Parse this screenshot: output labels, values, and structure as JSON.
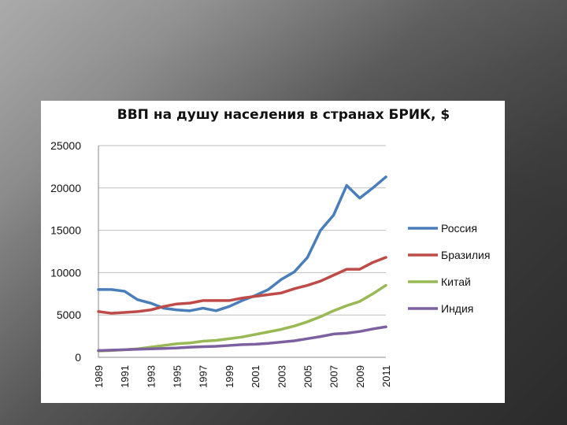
{
  "chart_data": {
    "type": "line",
    "title": "ВВП на душу населения в странах БРИК, $",
    "xlabel": "",
    "ylabel": "",
    "x": [
      1989,
      1990,
      1991,
      1992,
      1993,
      1994,
      1995,
      1996,
      1997,
      1998,
      1999,
      2000,
      2001,
      2002,
      2003,
      2004,
      2005,
      2006,
      2007,
      2008,
      2009,
      2010,
      2011
    ],
    "x_tick_labels": [
      "1989",
      "1991",
      "1993",
      "1995",
      "1997",
      "1999",
      "2001",
      "2003",
      "2005",
      "2007",
      "2009",
      "2011"
    ],
    "y_tick_labels": [
      "0",
      "5000",
      "10000",
      "15000",
      "20000",
      "25000"
    ],
    "ylim": [
      0,
      25000
    ],
    "grid": "horizontal",
    "legend_position": "right",
    "series": [
      {
        "name": "Россия",
        "color": "#4a7ebb",
        "values": [
          8000,
          8000,
          7800,
          6800,
          6400,
          5800,
          5600,
          5500,
          5800,
          5500,
          6000,
          6700,
          7300,
          8000,
          9200,
          10100,
          11800,
          15000,
          16800,
          20300,
          18800,
          20000,
          21300
        ]
      },
      {
        "name": "Бразилия",
        "color": "#be4b48",
        "values": [
          5400,
          5200,
          5300,
          5400,
          5600,
          6000,
          6300,
          6400,
          6700,
          6700,
          6700,
          7000,
          7200,
          7400,
          7600,
          8100,
          8500,
          9000,
          9700,
          10400,
          10400,
          11200,
          11800
        ]
      },
      {
        "name": "Китай",
        "color": "#98b954",
        "values": [
          750,
          800,
          900,
          1000,
          1200,
          1400,
          1600,
          1700,
          1900,
          2000,
          2200,
          2400,
          2700,
          3000,
          3300,
          3700,
          4200,
          4800,
          5500,
          6100,
          6600,
          7500,
          8500
        ]
      },
      {
        "name": "Индия",
        "color": "#7d60a0",
        "values": [
          800,
          850,
          900,
          950,
          1000,
          1050,
          1100,
          1200,
          1250,
          1300,
          1400,
          1500,
          1550,
          1650,
          1800,
          1950,
          2200,
          2450,
          2750,
          2850,
          3050,
          3350,
          3600
        ]
      }
    ]
  }
}
